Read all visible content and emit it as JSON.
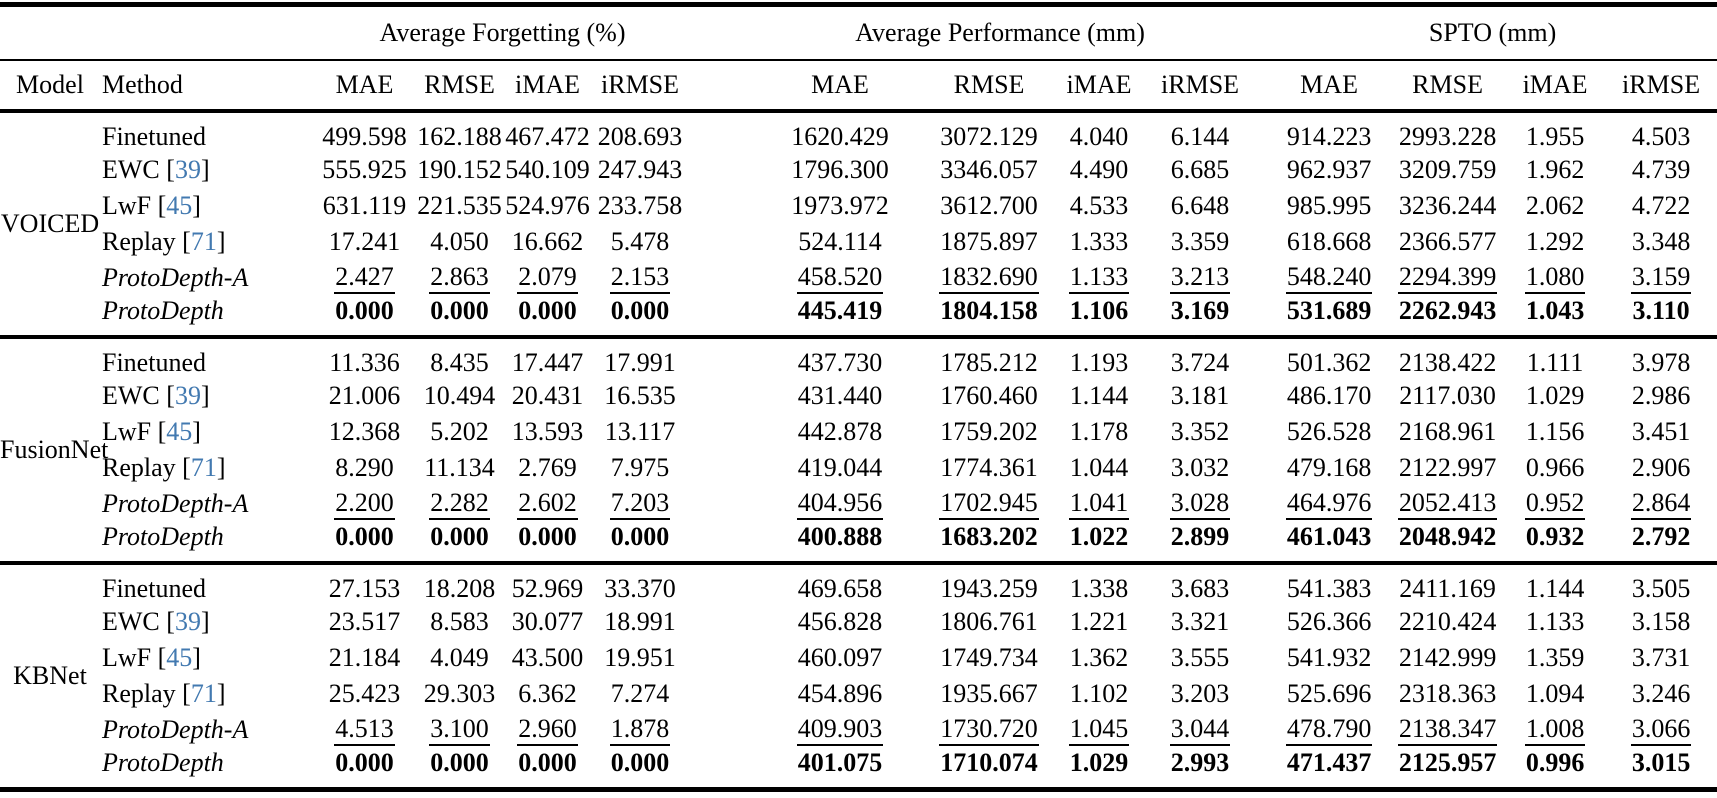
{
  "colors": {
    "citation": "#4279b0",
    "text": "#000000",
    "background": "#ffffff"
  },
  "table": {
    "group_headers": [
      "Average Forgetting (%)",
      "Average Performance (mm)",
      "SPTO (mm)"
    ],
    "col_model": "Model",
    "col_method": "Method",
    "metric_headers": [
      "MAE",
      "RMSE",
      "iMAE",
      "iRMSE"
    ],
    "blocks": [
      {
        "model": "VOICED",
        "rows": [
          {
            "method": "Finetuned",
            "citation": null,
            "italic": false,
            "emphasis": "none",
            "values": [
              "499.598",
              "162.188",
              "467.472",
              "208.693",
              "1620.429",
              "3072.129",
              "4.040",
              "6.144",
              "914.223",
              "2993.228",
              "1.955",
              "4.503"
            ]
          },
          {
            "method": "EWC",
            "citation": "39",
            "italic": false,
            "emphasis": "none",
            "values": [
              "555.925",
              "190.152",
              "540.109",
              "247.943",
              "1796.300",
              "3346.057",
              "4.490",
              "6.685",
              "962.937",
              "3209.759",
              "1.962",
              "4.739"
            ]
          },
          {
            "method": "LwF",
            "citation": "45",
            "italic": false,
            "emphasis": "none",
            "values": [
              "631.119",
              "221.535",
              "524.976",
              "233.758",
              "1973.972",
              "3612.700",
              "4.533",
              "6.648",
              "985.995",
              "3236.244",
              "2.062",
              "4.722"
            ]
          },
          {
            "method": "Replay",
            "citation": "71",
            "italic": false,
            "emphasis": "none",
            "values": [
              "17.241",
              "4.050",
              "16.662",
              "5.478",
              "524.114",
              "1875.897",
              "1.333",
              "3.359",
              "618.668",
              "2366.577",
              "1.292",
              "3.348"
            ]
          },
          {
            "method": "ProtoDepth-A",
            "citation": null,
            "italic": true,
            "emphasis": "underline",
            "values": [
              "2.427",
              "2.863",
              "2.079",
              "2.153",
              "458.520",
              "1832.690",
              "1.133",
              "3.213",
              "548.240",
              "2294.399",
              "1.080",
              "3.159"
            ]
          },
          {
            "method": "ProtoDepth",
            "citation": null,
            "italic": true,
            "emphasis": "bold",
            "values": [
              "0.000",
              "0.000",
              "0.000",
              "0.000",
              "445.419",
              "1804.158",
              "1.106",
              "3.169",
              "531.689",
              "2262.943",
              "1.043",
              "3.110"
            ]
          }
        ]
      },
      {
        "model": "FusionNet",
        "rows": [
          {
            "method": "Finetuned",
            "citation": null,
            "italic": false,
            "emphasis": "none",
            "values": [
              "11.336",
              "8.435",
              "17.447",
              "17.991",
              "437.730",
              "1785.212",
              "1.193",
              "3.724",
              "501.362",
              "2138.422",
              "1.111",
              "3.978"
            ]
          },
          {
            "method": "EWC",
            "citation": "39",
            "italic": false,
            "emphasis": "none",
            "values": [
              "21.006",
              "10.494",
              "20.431",
              "16.535",
              "431.440",
              "1760.460",
              "1.144",
              "3.181",
              "486.170",
              "2117.030",
              "1.029",
              "2.986"
            ]
          },
          {
            "method": "LwF",
            "citation": "45",
            "italic": false,
            "emphasis": "none",
            "values": [
              "12.368",
              "5.202",
              "13.593",
              "13.117",
              "442.878",
              "1759.202",
              "1.178",
              "3.352",
              "526.528",
              "2168.961",
              "1.156",
              "3.451"
            ]
          },
          {
            "method": "Replay",
            "citation": "71",
            "italic": false,
            "emphasis": "none",
            "values": [
              "8.290",
              "11.134",
              "2.769",
              "7.975",
              "419.044",
              "1774.361",
              "1.044",
              "3.032",
              "479.168",
              "2122.997",
              "0.966",
              "2.906"
            ]
          },
          {
            "method": "ProtoDepth-A",
            "citation": null,
            "italic": true,
            "emphasis": "underline",
            "values": [
              "2.200",
              "2.282",
              "2.602",
              "7.203",
              "404.956",
              "1702.945",
              "1.041",
              "3.028",
              "464.976",
              "2052.413",
              "0.952",
              "2.864"
            ]
          },
          {
            "method": "ProtoDepth",
            "citation": null,
            "italic": true,
            "emphasis": "bold",
            "values": [
              "0.000",
              "0.000",
              "0.000",
              "0.000",
              "400.888",
              "1683.202",
              "1.022",
              "2.899",
              "461.043",
              "2048.942",
              "0.932",
              "2.792"
            ]
          }
        ]
      },
      {
        "model": "KBNet",
        "rows": [
          {
            "method": "Finetuned",
            "citation": null,
            "italic": false,
            "emphasis": "none",
            "values": [
              "27.153",
              "18.208",
              "52.969",
              "33.370",
              "469.658",
              "1943.259",
              "1.338",
              "3.683",
              "541.383",
              "2411.169",
              "1.144",
              "3.505"
            ]
          },
          {
            "method": "EWC",
            "citation": "39",
            "italic": false,
            "emphasis": "none",
            "values": [
              "23.517",
              "8.583",
              "30.077",
              "18.991",
              "456.828",
              "1806.761",
              "1.221",
              "3.321",
              "526.366",
              "2210.424",
              "1.133",
              "3.158"
            ]
          },
          {
            "method": "LwF",
            "citation": "45",
            "italic": false,
            "emphasis": "none",
            "values": [
              "21.184",
              "4.049",
              "43.500",
              "19.951",
              "460.097",
              "1749.734",
              "1.362",
              "3.555",
              "541.932",
              "2142.999",
              "1.359",
              "3.731"
            ]
          },
          {
            "method": "Replay",
            "citation": "71",
            "italic": false,
            "emphasis": "none",
            "values": [
              "25.423",
              "29.303",
              "6.362",
              "7.274",
              "454.896",
              "1935.667",
              "1.102",
              "3.203",
              "525.696",
              "2318.363",
              "1.094",
              "3.246"
            ]
          },
          {
            "method": "ProtoDepth-A",
            "citation": null,
            "italic": true,
            "emphasis": "underline",
            "values": [
              "4.513",
              "3.100",
              "2.960",
              "1.878",
              "409.903",
              "1730.720",
              "1.045",
              "3.044",
              "478.790",
              "2138.347",
              "1.008",
              "3.066"
            ]
          },
          {
            "method": "ProtoDepth",
            "citation": null,
            "italic": true,
            "emphasis": "bold",
            "values": [
              "0.000",
              "0.000",
              "0.000",
              "0.000",
              "401.075",
              "1710.074",
              "1.029",
              "2.993",
              "471.437",
              "2125.957",
              "0.996",
              "3.015"
            ]
          }
        ]
      }
    ]
  }
}
